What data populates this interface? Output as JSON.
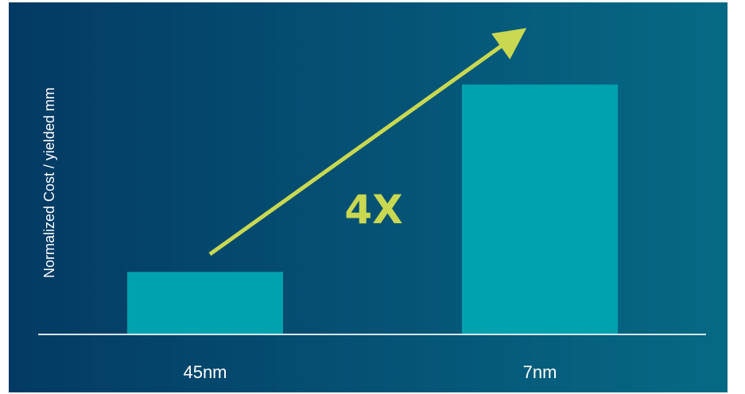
{
  "chart_data": {
    "type": "bar",
    "categories": [
      "45nm",
      "7nm"
    ],
    "values": [
      1,
      4
    ],
    "ylabel": "Normalized Cost / yielded mm",
    "xlabel": "",
    "ylim": [
      0,
      4.4
    ],
    "grid": false,
    "annotation": "4X",
    "colors": {
      "bar": "#01a2b0",
      "arrow": "#c9d850",
      "axis": "#d7e6ee",
      "text": "#ffffff"
    }
  }
}
